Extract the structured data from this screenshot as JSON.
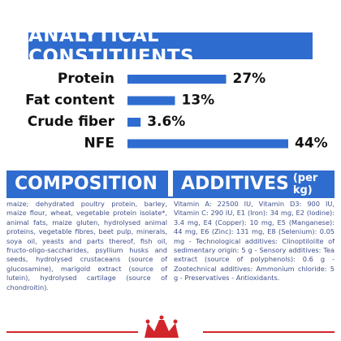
{
  "analytics": {
    "title": "ANALYTICAL CONSTITUENTS",
    "rows": [
      {
        "label": "Protein",
        "value": 27,
        "value_label": "27%"
      },
      {
        "label": "Fat content",
        "value": 13,
        "value_label": "13%"
      },
      {
        "label": "Crude fiber",
        "value": 3.6,
        "value_label": "3.6%"
      },
      {
        "label": "NFE",
        "value": 44,
        "value_label": "44%"
      }
    ]
  },
  "composition": {
    "title": "COMPOSITION",
    "text": "maize; dehydrated poultry protein, barley, maize flour, wheat, vegetable protein isolate*, animal fats, maize gluten, hydrolysed animal proteins, vegetable fibres, beet pulp, minerals, soya oil, yeasts and parts thereof, fish oil, fructo-oligo-saccharides, psyllium husks and seeds, hydrolysed crustaceans (source of glucosamine), marigold extract (source of lutein), hydrolysed cartilage (source of chondroitin)."
  },
  "additives": {
    "title": "ADDITIVES",
    "subtitle": "(per kg)",
    "text": "Vitamin A: 22500 IU, Vitamin D3: 900 IU, Vitamin C: 290 IU, E1 (Iron): 34 mg, E2 (Iodine): 3.4 mg, E4 (Copper): 10 mg, E5 (Manganese): 44 mg, E6 (Zinc): 131 mg, E8 (Selenium): 0.05 mg - Technological additives: Clinoptilolite of sedimentary origin: 5 g - Sensory additives: Tea extract (source of polyphenols): 0.6 g - Zootechnical additives: Ammonium chloride: 5 g - Preservatives - Antioxidants."
  }
}
